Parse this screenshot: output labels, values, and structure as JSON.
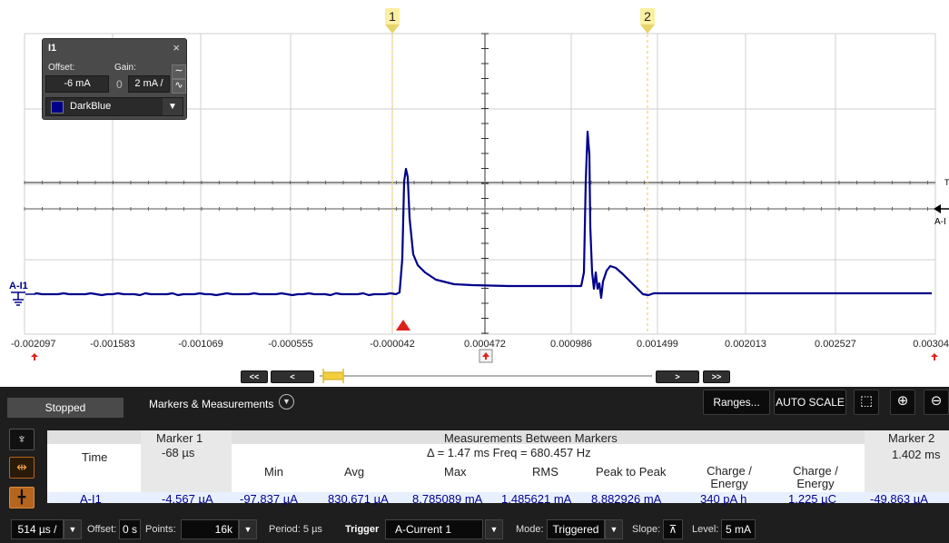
{
  "plot": {
    "x_ticks": [
      "-0.002097",
      "-0.001583",
      "-0.001069",
      "-0.000555",
      "-0.000042",
      "0.000472",
      "0.000986",
      "0.001499",
      "0.002013",
      "0.002527",
      "0.00304"
    ],
    "marker1_label": "1",
    "marker2_label": "2",
    "channel_marker": "A-I1",
    "right_marker": "A-I",
    "right_t": "T",
    "trace_color": "#00008b"
  },
  "channel_panel": {
    "title": "I1",
    "close": "×",
    "offset_label": "Offset:",
    "gain_label": "Gain:",
    "offset_value": "-6 mA",
    "gain_value": "2 mA /",
    "zero_symbol": "0",
    "color_name": "DarkBlue"
  },
  "nav": {
    "first": "<<",
    "prev": "<",
    "next": ">",
    "last": ">>"
  },
  "panel": {
    "status": "Stopped",
    "title": "Markers & Measurements",
    "ranges_button": "Ranges...",
    "autoscale_button": "AUTO SCALE"
  },
  "measurements": {
    "marker1_header": "Marker 1",
    "between_header": "Measurements Between Markers",
    "marker2_header": "Marker 2",
    "time_label": "Time",
    "marker1_time": "-68 µs",
    "delta": "Δ = 1.47 ms  Freq = 680.457 Hz",
    "marker2_time": "1.402 ms",
    "columns": [
      "Min",
      "Avg",
      "Max",
      "RMS",
      "Peak to Peak",
      "Charge / Energy",
      "Charge / Energy"
    ],
    "row": {
      "name": "A-I1",
      "marker1": "-4.567 µA",
      "min": "-97.837 µA",
      "avg": "830.671 µA",
      "max": "8.785089 mA",
      "rms": "1.485621 mA",
      "p2p": "8.882926 mA",
      "charge1": "340 pA h",
      "charge2": "1.225 µC",
      "marker2": "-49.863 µA"
    }
  },
  "statusbar": {
    "timebase": "514 µs /",
    "offset_label": "Offset:",
    "offset_value": "0 s",
    "points_label": "Points:",
    "points_value": "16k",
    "period_label": "Period: 5 µs",
    "trigger_label": "Trigger",
    "trigger_value": "A-Current 1",
    "mode_label": "Mode:",
    "mode_value": "Triggered",
    "slope_label": "Slope:",
    "level_label": "Level:",
    "level_value": "5 mA"
  }
}
